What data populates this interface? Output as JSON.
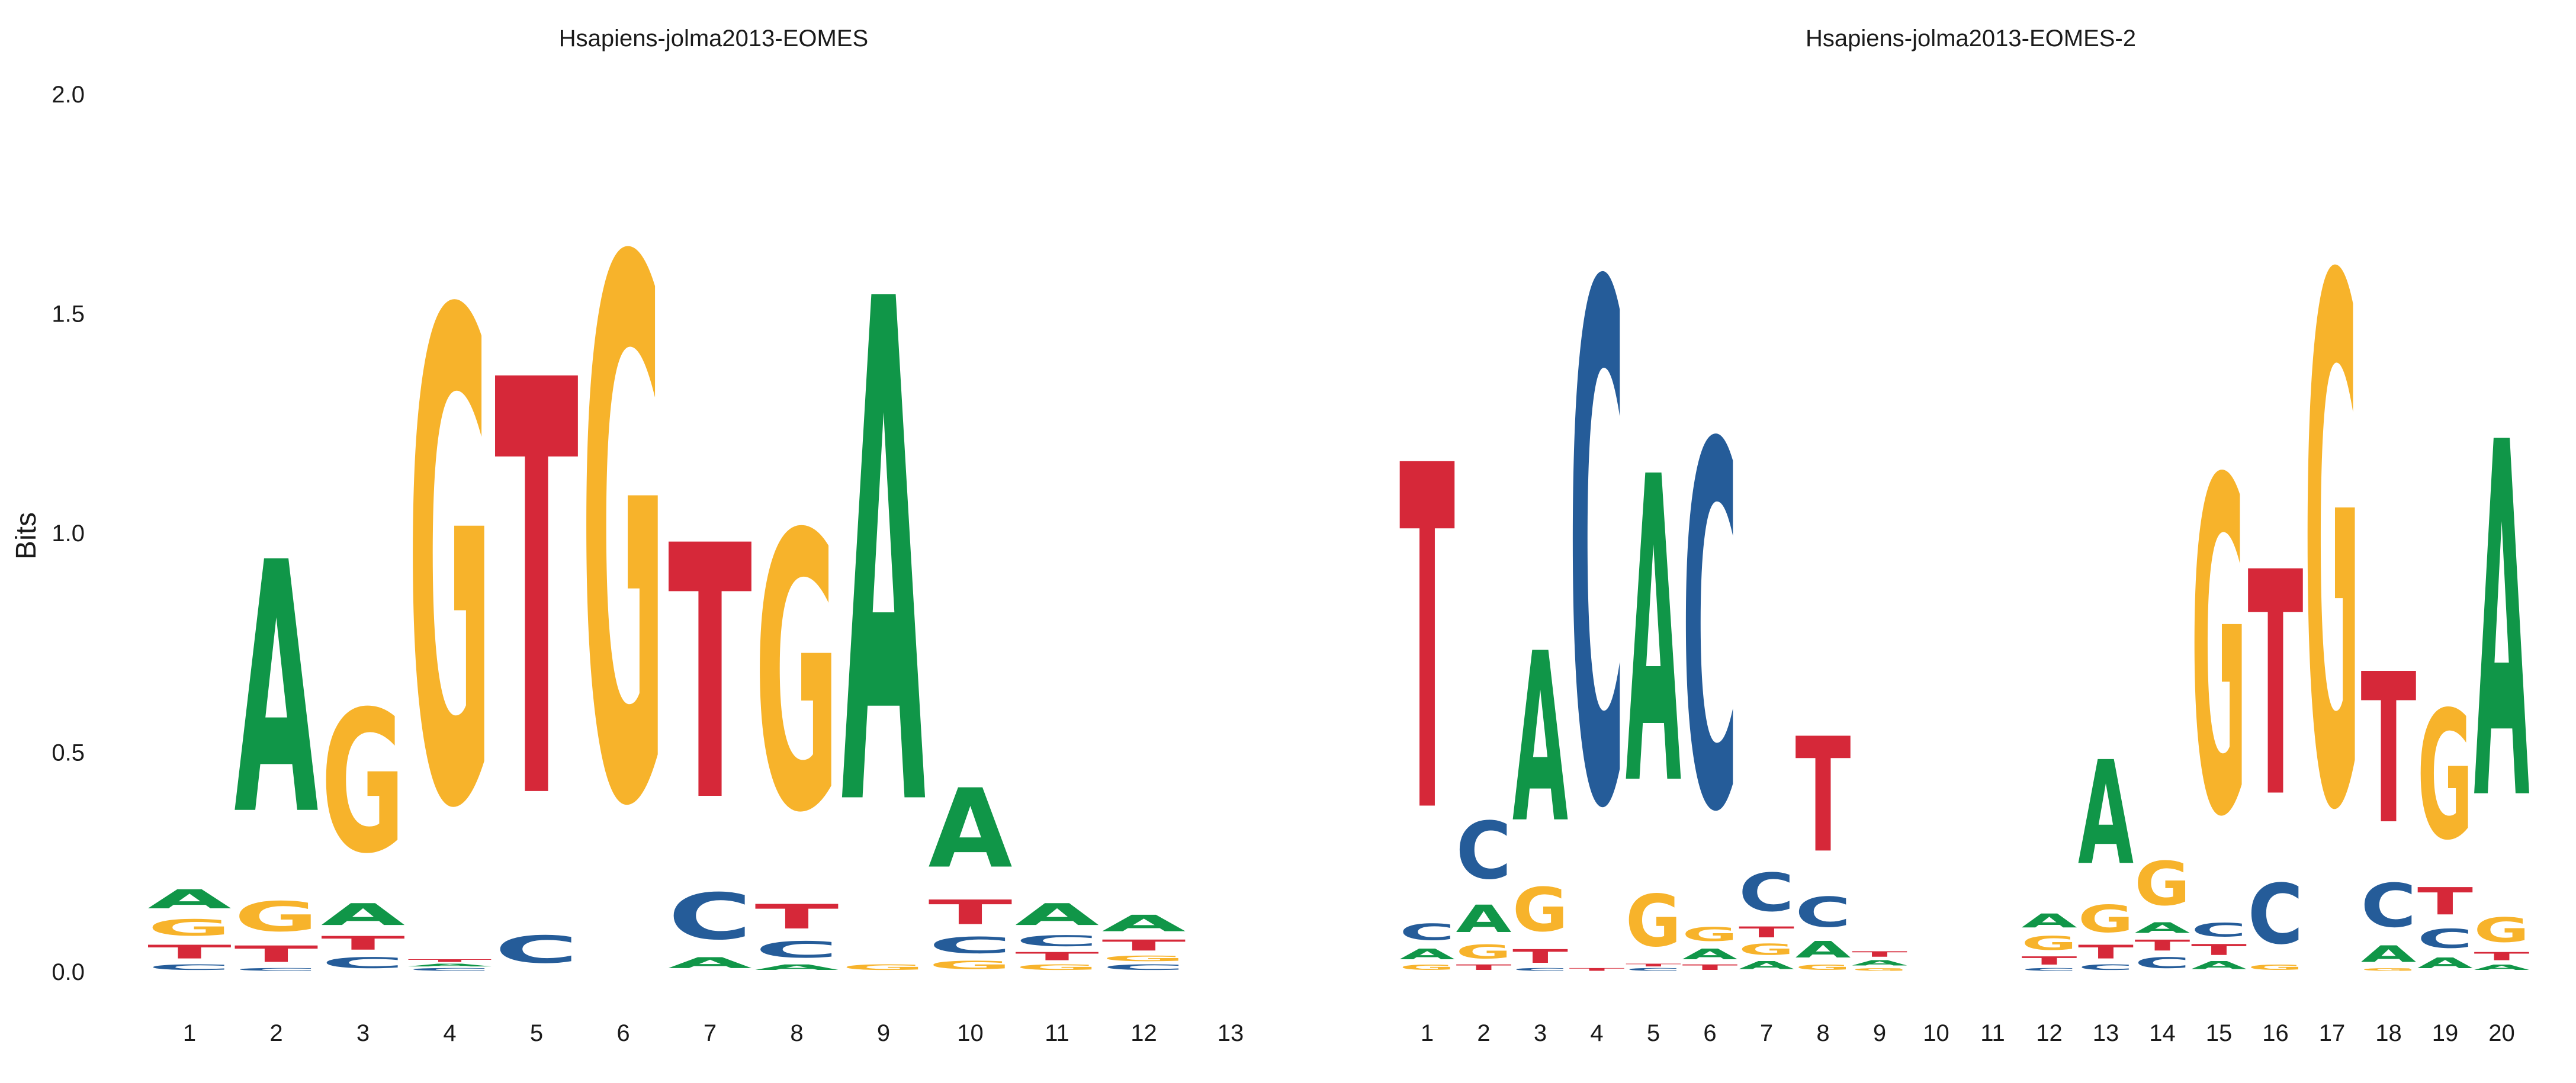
{
  "colors": {
    "A": "#109648",
    "C": "#255C99",
    "G": "#F7B32B",
    "T": "#D62839"
  },
  "chart_data": [
    {
      "type": "sequence-logo",
      "title": "Hsapiens-jolma2013-EOMES",
      "ylabel": "Bits",
      "ylim": [
        0,
        2.0
      ],
      "yticks": [
        "0.0",
        "0.5",
        "1.0",
        "1.5",
        "2.0"
      ],
      "grid": false,
      "positions": [
        {
          "pos": "1",
          "stack": [
            [
              "C",
              0.02
            ],
            [
              "T",
              0.05
            ],
            [
              "G",
              0.06
            ],
            [
              "A",
              0.07
            ]
          ]
        },
        {
          "pos": "2",
          "stack": [
            [
              "C",
              0.01
            ],
            [
              "T",
              0.06
            ],
            [
              "G",
              0.11
            ],
            [
              "A",
              0.92
            ]
          ]
        },
        {
          "pos": "3",
          "stack": [
            [
              "C",
              0.04
            ],
            [
              "T",
              0.05
            ],
            [
              "A",
              0.08
            ],
            [
              "G",
              0.52
            ]
          ]
        },
        {
          "pos": "4",
          "stack": [
            [
              "C",
              0.01
            ],
            [
              "A",
              0.01
            ],
            [
              "T",
              0.01
            ],
            [
              "G",
              1.79
            ]
          ]
        },
        {
          "pos": "5",
          "stack": [
            [
              "C",
              0.1
            ],
            [
              "T",
              1.52
            ]
          ]
        },
        {
          "pos": "6",
          "stack": [
            [
              "G",
              1.97
            ]
          ]
        },
        {
          "pos": "7",
          "stack": [
            [
              "A",
              0.04
            ],
            [
              "C",
              0.17
            ],
            [
              "T",
              0.93
            ]
          ]
        },
        {
          "pos": "8",
          "stack": [
            [
              "A",
              0.02
            ],
            [
              "C",
              0.06
            ],
            [
              "T",
              0.09
            ],
            [
              "G",
              1.01
            ]
          ]
        },
        {
          "pos": "9",
          "stack": [
            [
              "G",
              0.02
            ],
            [
              "A",
              1.84
            ]
          ]
        },
        {
          "pos": "10",
          "stack": [
            [
              "G",
              0.03
            ],
            [
              "C",
              0.06
            ],
            [
              "T",
              0.09
            ],
            [
              "A",
              0.29
            ]
          ]
        },
        {
          "pos": "11",
          "stack": [
            [
              "G",
              0.02
            ],
            [
              "T",
              0.03
            ],
            [
              "C",
              0.04
            ],
            [
              "A",
              0.08
            ]
          ]
        },
        {
          "pos": "12",
          "stack": [
            [
              "C",
              0.02
            ],
            [
              "G",
              0.02
            ],
            [
              "T",
              0.04
            ],
            [
              "A",
              0.06
            ]
          ]
        },
        {
          "pos": "13",
          "stack": []
        }
      ]
    },
    {
      "type": "sequence-logo",
      "title": "Hsapiens-jolma2013-EOMES-2",
      "ylabel": "",
      "ylim": [
        0,
        2.0
      ],
      "yticks": [],
      "grid": false,
      "positions": [
        {
          "pos": "1",
          "stack": [
            [
              "G",
              0.02
            ],
            [
              "A",
              0.04
            ],
            [
              "C",
              0.06
            ],
            [
              "T",
              1.26
            ]
          ]
        },
        {
          "pos": "2",
          "stack": [
            [
              "T",
              0.02
            ],
            [
              "G",
              0.05
            ],
            [
              "A",
              0.1
            ],
            [
              "C",
              0.21
            ]
          ]
        },
        {
          "pos": "3",
          "stack": [
            [
              "C",
              0.01
            ],
            [
              "T",
              0.05
            ],
            [
              "G",
              0.16
            ],
            [
              "A",
              0.62
            ]
          ]
        },
        {
          "pos": "4",
          "stack": [
            [
              "T",
              0.01
            ],
            [
              "C",
              1.89
            ]
          ]
        },
        {
          "pos": "5",
          "stack": [
            [
              "C",
              0.01
            ],
            [
              "T",
              0.01
            ],
            [
              "G",
              0.19
            ],
            [
              "A",
              1.12
            ]
          ]
        },
        {
          "pos": "6",
          "stack": [
            [
              "T",
              0.02
            ],
            [
              "A",
              0.04
            ],
            [
              "G",
              0.05
            ],
            [
              "C",
              1.33
            ]
          ]
        },
        {
          "pos": "7",
          "stack": [
            [
              "A",
              0.03
            ],
            [
              "G",
              0.04
            ],
            [
              "T",
              0.04
            ],
            [
              "C",
              0.14
            ]
          ]
        },
        {
          "pos": "8",
          "stack": [
            [
              "G",
              0.02
            ],
            [
              "A",
              0.06
            ],
            [
              "C",
              0.11
            ],
            [
              "T",
              0.42
            ]
          ]
        },
        {
          "pos": "9",
          "stack": [
            [
              "G",
              0.01
            ],
            [
              "A",
              0.02
            ],
            [
              "T",
              0.02
            ]
          ]
        },
        {
          "pos": "10",
          "stack": []
        },
        {
          "pos": "11",
          "stack": []
        },
        {
          "pos": "12",
          "stack": [
            [
              "C",
              0.01
            ],
            [
              "T",
              0.03
            ],
            [
              "G",
              0.05
            ],
            [
              "A",
              0.05
            ]
          ]
        },
        {
          "pos": "13",
          "stack": [
            [
              "C",
              0.02
            ],
            [
              "T",
              0.05
            ],
            [
              "G",
              0.1
            ],
            [
              "A",
              0.38
            ]
          ]
        },
        {
          "pos": "14",
          "stack": [
            [
              "C",
              0.04
            ],
            [
              "T",
              0.04
            ],
            [
              "A",
              0.04
            ],
            [
              "G",
              0.16
            ]
          ]
        },
        {
          "pos": "15",
          "stack": [
            [
              "A",
              0.03
            ],
            [
              "T",
              0.04
            ],
            [
              "C",
              0.05
            ],
            [
              "G",
              1.22
            ]
          ]
        },
        {
          "pos": "16",
          "stack": [
            [
              "G",
              0.02
            ],
            [
              "C",
              0.22
            ],
            [
              "T",
              0.82
            ]
          ]
        },
        {
          "pos": "17",
          "stack": [
            [
              "G",
              1.92
            ]
          ]
        },
        {
          "pos": "18",
          "stack": [
            [
              "G",
              0.01
            ],
            [
              "A",
              0.06
            ],
            [
              "C",
              0.16
            ],
            [
              "T",
              0.55
            ]
          ]
        },
        {
          "pos": "19",
          "stack": [
            [
              "A",
              0.04
            ],
            [
              "C",
              0.07
            ],
            [
              "T",
              0.1
            ],
            [
              "G",
              0.47
            ]
          ]
        },
        {
          "pos": "20",
          "stack": [
            [
              "A",
              0.02
            ],
            [
              "T",
              0.03
            ],
            [
              "G",
              0.09
            ],
            [
              "A",
              1.3
            ]
          ]
        }
      ]
    }
  ]
}
